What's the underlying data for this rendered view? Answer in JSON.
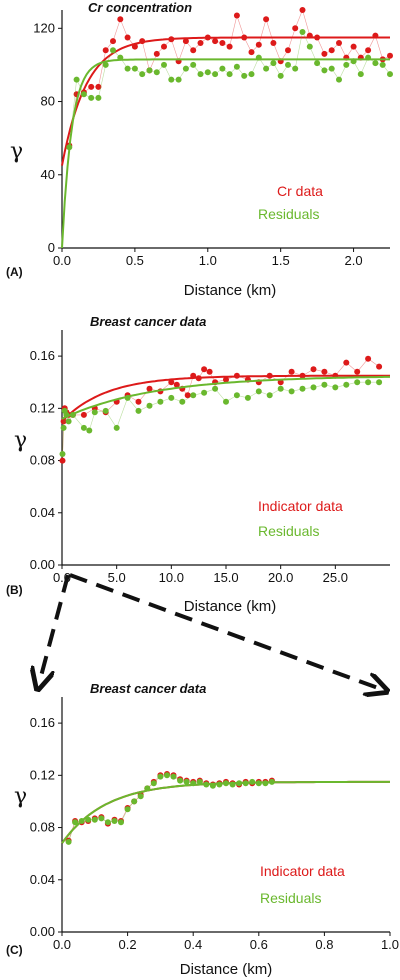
{
  "colors": {
    "red": "#dd1a1a",
    "green": "#6ab82e",
    "axis": "#111111"
  },
  "chart_data": [
    {
      "type": "scatter",
      "panel_label": "(A)",
      "title": "Cr concentration",
      "xlabel": "Distance (km)",
      "ylabel": "γ",
      "xlim": [
        0,
        2.25
      ],
      "ylim": [
        0,
        130
      ],
      "xticks": [
        0.0,
        0.5,
        1.0,
        1.5,
        2.0
      ],
      "xtick_labels": [
        "0.0",
        "0.5",
        "1.0",
        "1.5",
        "2.0"
      ],
      "yticks": [
        0,
        40,
        80,
        120
      ],
      "ytick_labels": [
        "0",
        "40",
        "80",
        "120"
      ],
      "legend": [
        "Cr data",
        "Residuals"
      ],
      "series": [
        {
          "name": "Cr data",
          "color": "red",
          "x": [
            0.05,
            0.1,
            0.15,
            0.2,
            0.25,
            0.3,
            0.35,
            0.4,
            0.45,
            0.5,
            0.55,
            0.6,
            0.65,
            0.7,
            0.75,
            0.8,
            0.85,
            0.9,
            0.95,
            1.0,
            1.05,
            1.1,
            1.15,
            1.2,
            1.25,
            1.3,
            1.35,
            1.4,
            1.45,
            1.5,
            1.55,
            1.6,
            1.65,
            1.7,
            1.75,
            1.8,
            1.85,
            1.9,
            1.95,
            2.0,
            2.05,
            2.1,
            2.15,
            2.2,
            2.25
          ],
          "y": [
            56,
            84,
            85,
            88,
            88,
            108,
            113,
            125,
            115,
            110,
            113,
            97,
            106,
            110,
            114,
            102,
            113,
            108,
            112,
            115,
            113,
            112,
            110,
            127,
            115,
            107,
            111,
            125,
            112,
            102,
            108,
            120,
            130,
            116,
            115,
            106,
            108,
            112,
            104,
            110,
            104,
            108,
            116,
            103,
            105
          ],
          "fit": {
            "nugget": 45,
            "sill": 115,
            "range": 0.5
          }
        },
        {
          "name": "Residuals",
          "color": "green",
          "x": [
            0.05,
            0.1,
            0.15,
            0.2,
            0.25,
            0.3,
            0.35,
            0.4,
            0.45,
            0.5,
            0.55,
            0.6,
            0.65,
            0.7,
            0.75,
            0.8,
            0.85,
            0.9,
            0.95,
            1.0,
            1.05,
            1.1,
            1.15,
            1.2,
            1.25,
            1.3,
            1.35,
            1.4,
            1.45,
            1.5,
            1.55,
            1.6,
            1.65,
            1.7,
            1.75,
            1.8,
            1.85,
            1.9,
            1.95,
            2.0,
            2.05,
            2.1,
            2.15,
            2.2,
            2.25
          ],
          "y": [
            55,
            92,
            84,
            82,
            82,
            100,
            108,
            104,
            98,
            98,
            95,
            97,
            96,
            100,
            92,
            92,
            98,
            100,
            95,
            96,
            95,
            98,
            95,
            99,
            94,
            95,
            104,
            98,
            101,
            94,
            100,
            98,
            118,
            110,
            101,
            97,
            98,
            92,
            100,
            102,
            95,
            104,
            101,
            100,
            95
          ],
          "fit": {
            "nugget": 0,
            "sill": 103,
            "range": 0.2
          }
        }
      ]
    },
    {
      "type": "scatter",
      "panel_label": "(B)",
      "title": "Breast cancer data",
      "xlabel": "Distance (km)",
      "ylabel": "γ",
      "xlim": [
        0,
        30
      ],
      "ylim": [
        0,
        0.18
      ],
      "xticks": [
        0,
        5,
        10,
        15,
        20,
        25
      ],
      "xtick_labels": [
        "0.0",
        "5.0",
        "10.0",
        "15.0",
        "20.0",
        "25.0"
      ],
      "yticks": [
        0,
        0.04,
        0.08,
        0.12,
        0.16
      ],
      "ytick_labels": [
        "0.00",
        "0.04",
        "0.08",
        "0.12",
        "0.16"
      ],
      "legend": [
        "Indicator data",
        "Residuals"
      ],
      "series": [
        {
          "name": "Indicator data",
          "color": "red",
          "x": [
            0.05,
            0.15,
            0.25,
            0.4,
            0.6,
            1,
            2,
            3,
            4,
            5,
            6,
            7,
            8,
            9,
            10,
            10.5,
            11,
            11.5,
            12,
            12.5,
            13,
            13.5,
            14,
            15,
            16,
            17,
            18,
            19,
            20,
            21,
            22,
            23,
            24,
            25,
            26,
            27,
            28,
            29
          ],
          "y": [
            0.08,
            0.11,
            0.12,
            0.117,
            0.115,
            0.115,
            0.115,
            0.12,
            0.117,
            0.125,
            0.13,
            0.125,
            0.135,
            0.133,
            0.14,
            0.138,
            0.135,
            0.13,
            0.145,
            0.143,
            0.15,
            0.148,
            0.14,
            0.142,
            0.145,
            0.142,
            0.14,
            0.145,
            0.14,
            0.148,
            0.145,
            0.15,
            0.148,
            0.145,
            0.155,
            0.148,
            0.158,
            0.152
          ],
          "fit": {
            "nugget": 0.11,
            "sill": 0.145,
            "range": 12
          }
        },
        {
          "name": "Residuals",
          "color": "green",
          "x": [
            0.05,
            0.15,
            0.25,
            0.4,
            0.6,
            1,
            2,
            2.5,
            3,
            4,
            5,
            6,
            7,
            8,
            9,
            10,
            11,
            12,
            13,
            14,
            15,
            16,
            17,
            18,
            19,
            20,
            21,
            22,
            23,
            24,
            25,
            26,
            27,
            28,
            29
          ],
          "y": [
            0.085,
            0.105,
            0.118,
            0.115,
            0.11,
            0.115,
            0.105,
            0.103,
            0.117,
            0.118,
            0.105,
            0.128,
            0.118,
            0.122,
            0.125,
            0.128,
            0.125,
            0.13,
            0.132,
            0.135,
            0.125,
            0.13,
            0.128,
            0.133,
            0.13,
            0.135,
            0.133,
            0.135,
            0.136,
            0.138,
            0.136,
            0.138,
            0.14,
            0.14,
            0.14
          ],
          "fit": {
            "nugget": 0.112,
            "sill": 0.145,
            "range": 25
          }
        }
      ]
    },
    {
      "type": "scatter",
      "panel_label": "(C)",
      "title": "Breast cancer data",
      "xlabel": "Distance (km)",
      "ylabel": "γ",
      "xlim": [
        0,
        1.0
      ],
      "ylim": [
        0,
        0.18
      ],
      "xticks": [
        0,
        0.2,
        0.4,
        0.6,
        0.8,
        1.0
      ],
      "xtick_labels": [
        "0.0",
        "0.2",
        "0.4",
        "0.6",
        "0.8",
        "1.0"
      ],
      "yticks": [
        0,
        0.04,
        0.08,
        0.12,
        0.16
      ],
      "ytick_labels": [
        "0.00",
        "0.04",
        "0.08",
        "0.12",
        "0.16"
      ],
      "legend": [
        "Indicator data",
        "Residuals"
      ],
      "series": [
        {
          "name": "Indicator data",
          "color": "red",
          "x": [
            0.02,
            0.04,
            0.06,
            0.08,
            0.1,
            0.12,
            0.14,
            0.16,
            0.18,
            0.2,
            0.22,
            0.24,
            0.26,
            0.28,
            0.3,
            0.32,
            0.34,
            0.36,
            0.38,
            0.4,
            0.42,
            0.44,
            0.46,
            0.48,
            0.5,
            0.52,
            0.54,
            0.56,
            0.58,
            0.6,
            0.62,
            0.64
          ],
          "y": [
            0.07,
            0.085,
            0.084,
            0.085,
            0.087,
            0.088,
            0.083,
            0.086,
            0.085,
            0.095,
            0.1,
            0.105,
            0.11,
            0.115,
            0.12,
            0.121,
            0.12,
            0.117,
            0.116,
            0.115,
            0.116,
            0.114,
            0.113,
            0.114,
            0.115,
            0.114,
            0.113,
            0.115,
            0.114,
            0.115,
            0.115,
            0.116
          ],
          "fit": {
            "nugget": 0.068,
            "sill": 0.115,
            "range": 0.4
          }
        },
        {
          "name": "Residuals",
          "color": "green",
          "x": [
            0.02,
            0.04,
            0.06,
            0.08,
            0.1,
            0.12,
            0.14,
            0.16,
            0.18,
            0.2,
            0.22,
            0.24,
            0.26,
            0.28,
            0.3,
            0.32,
            0.34,
            0.36,
            0.38,
            0.4,
            0.42,
            0.44,
            0.46,
            0.48,
            0.5,
            0.52,
            0.54,
            0.56,
            0.58,
            0.6,
            0.62,
            0.64
          ],
          "y": [
            0.069,
            0.084,
            0.085,
            0.086,
            0.086,
            0.087,
            0.084,
            0.085,
            0.084,
            0.094,
            0.1,
            0.104,
            0.11,
            0.114,
            0.119,
            0.12,
            0.119,
            0.116,
            0.115,
            0.114,
            0.115,
            0.113,
            0.112,
            0.113,
            0.114,
            0.113,
            0.114,
            0.114,
            0.115,
            0.114,
            0.114,
            0.115
          ],
          "fit": {
            "nugget": 0.068,
            "sill": 0.115,
            "range": 0.4
          }
        }
      ]
    }
  ]
}
